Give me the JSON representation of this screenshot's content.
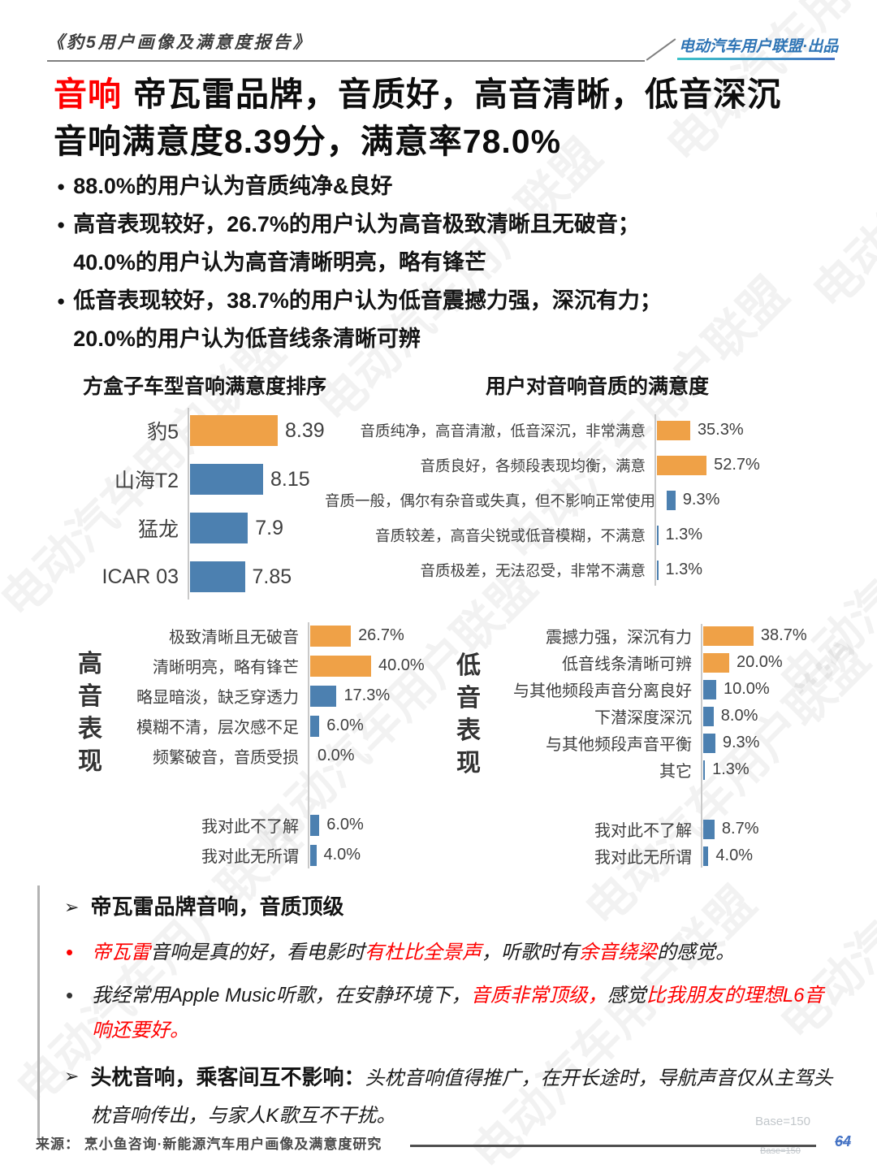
{
  "watermark": "电动汽车用户联盟",
  "colors": {
    "accent_red": "#FE0000",
    "bar_orange": "#EFA147",
    "bar_blue": "#4C80B0",
    "brand_blue": "#2E74B5"
  },
  "header": {
    "report_title": "《豹5用户画像及满意度报告》",
    "brand": "电动汽车用户联盟·出品"
  },
  "title": {
    "tag": "音响",
    "line1_rest": "帝瓦雷品牌，音质好，高音清晰，低音深沉",
    "line2": "音响满意度8.39分，满意率78.0%"
  },
  "bullet_marker": "●",
  "bullets": [
    "88.0%的用户认为音质纯净&良好",
    "高音表现较好，26.7%的用户认为高音极致清晰且无破音；\n40.0%的用户认为高音清晰明亮，略有锋芒",
    "低音表现较好，38.7%的用户认为低音震撼力强，深沉有力；\n20.0%的用户认为低音线条清晰可辨"
  ],
  "chart_data": [
    {
      "id": "ranking",
      "type": "bar",
      "orientation": "horizontal",
      "title": "方盒子车型音响满意度排序",
      "categories": [
        "豹5",
        "山海T2",
        "猛龙",
        "ICAR 03"
      ],
      "values": [
        8.39,
        8.15,
        7.9,
        7.85
      ],
      "value_labels": [
        "8.39",
        "8.15",
        "7.9",
        "7.85"
      ],
      "highlighted": [
        0
      ],
      "xlim": [
        7,
        8.5
      ],
      "grid": false,
      "legend": "none"
    },
    {
      "id": "quality",
      "type": "bar",
      "orientation": "horizontal",
      "title": "用户对音响音质的满意度",
      "categories": [
        "音质纯净，高音清澈，低音深沉，非常满意",
        "音质良好，各频段表现均衡，满意",
        "音质一般，偶尔有杂音或失真，但不影响正常使用",
        "音质较差，高音尖锐或低音模糊，不满意",
        "音质极差，无法忍受，非常不满意"
      ],
      "values": [
        35.3,
        52.7,
        9.3,
        1.3,
        1.3
      ],
      "value_labels": [
        "35.3%",
        "52.7%",
        "9.3%",
        "1.3%",
        "1.3%"
      ],
      "highlighted": [
        0,
        1
      ],
      "xlim": [
        0,
        60
      ],
      "grid": false,
      "legend": "none"
    },
    {
      "id": "treble",
      "type": "bar",
      "orientation": "horizontal",
      "title": "",
      "group_label": "高音表现",
      "categories": [
        "极致清晰且无破音",
        "清晰明亮，略有锋芒",
        "略显暗淡，缺乏穿透力",
        "模糊不清，层次感不足",
        "频繁破音，音质受损",
        "我对此不了解",
        "我对此无所谓"
      ],
      "values": [
        26.7,
        40.0,
        17.3,
        6.0,
        0.0,
        6.0,
        4.0
      ],
      "value_labels": [
        "26.7%",
        "40.0%",
        "17.3%",
        "6.0%",
        "0.0%",
        "6.0%",
        "4.0%"
      ],
      "highlighted": [
        0,
        1
      ],
      "gap_before_index": 5,
      "xlim": [
        0,
        45
      ],
      "grid": false,
      "legend": "none"
    },
    {
      "id": "bass",
      "type": "bar",
      "orientation": "horizontal",
      "title": "",
      "group_label": "低音表现",
      "categories": [
        "震撼力强，深沉有力",
        "低音线条清晰可辨",
        "与其他频段声音分离良好",
        "下潜深度深沉",
        "与其他频段声音平衡",
        "其它",
        "我对此不了解",
        "我对此无所谓"
      ],
      "values": [
        38.7,
        20.0,
        10.0,
        8.0,
        9.3,
        1.3,
        8.7,
        4.0
      ],
      "value_labels": [
        "38.7%",
        "20.0%",
        "10.0%",
        "8.0%",
        "9.3%",
        "1.3%",
        "8.7%",
        "4.0%"
      ],
      "highlighted": [
        0,
        1
      ],
      "gap_before_index": 6,
      "xlim": [
        0,
        45
      ],
      "grid": false,
      "legend": "none"
    }
  ],
  "insights": {
    "arrow": "➢",
    "dot": "•",
    "heading1": "帝瓦雷品牌音响，音质顶级",
    "quote1_segments": [
      {
        "t": "帝瓦雷",
        "red": true
      },
      {
        "t": "音响是真的好，看电影时",
        "red": false
      },
      {
        "t": "有杜比全景声",
        "red": true
      },
      {
        "t": "，听歌时有",
        "red": false
      },
      {
        "t": "余音绕梁",
        "red": true
      },
      {
        "t": "的感觉。",
        "red": false
      }
    ],
    "quote2_segments": [
      {
        "t": "我经常用Apple Music听歌，在安静环境下，",
        "red": false
      },
      {
        "t": "音质非常顶级，",
        "red": true
      },
      {
        "t": "感觉",
        "red": false
      },
      {
        "t": "比我朋友的理想L6音响还要好。",
        "red": true
      }
    ],
    "heading2_bold": "头枕音响，乘客间互不影响：",
    "heading2_rest": "头枕音响值得推广，在开长途时，导航声音仅从主驾头枕音响传出，与家人K歌互不干扰。"
  },
  "footer": {
    "source": "来源： 烹小鱼咨询·新能源汽车用户画像及满意度研究",
    "base": "Base=150",
    "page": "64"
  }
}
